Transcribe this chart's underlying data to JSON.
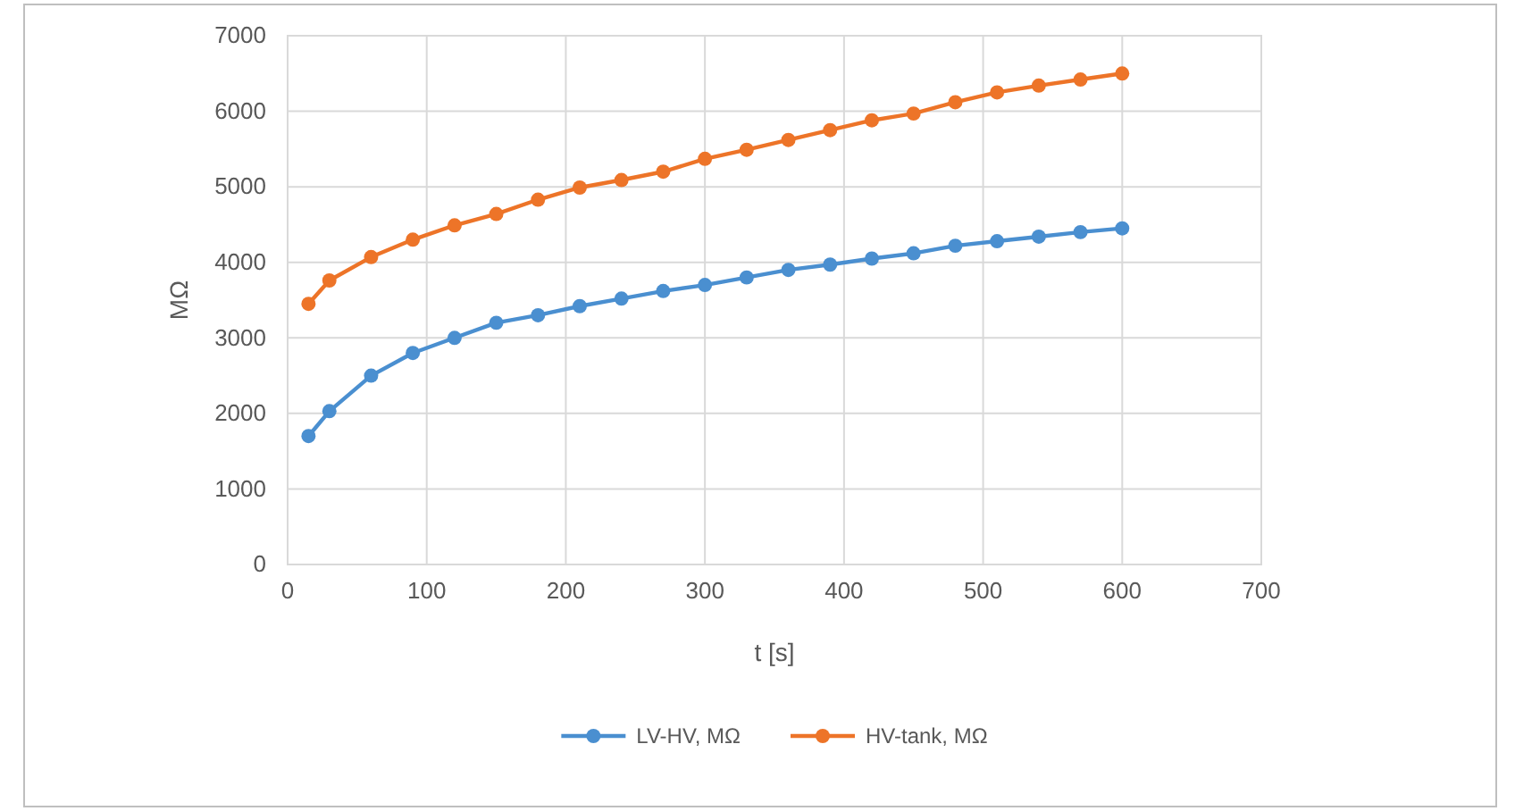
{
  "chart_data": {
    "type": "line",
    "xlabel": "t [s]",
    "ylabel": "MΩ",
    "x": [
      15,
      30,
      60,
      90,
      120,
      150,
      180,
      210,
      240,
      270,
      300,
      330,
      360,
      390,
      420,
      450,
      480,
      510,
      540,
      570,
      600
    ],
    "series": [
      {
        "name": "LV-HV, MΩ",
        "color": "#4a8fd0",
        "values": [
          1700,
          2030,
          2500,
          2800,
          3000,
          3200,
          3300,
          3420,
          3520,
          3620,
          3700,
          3800,
          3900,
          3970,
          4050,
          4120,
          4220,
          4280,
          4340,
          4400,
          4450
        ]
      },
      {
        "name": "HV-tank, MΩ",
        "color": "#ed7428",
        "values": [
          3450,
          3760,
          4070,
          4300,
          4490,
          4640,
          4830,
          4990,
          5090,
          5200,
          5370,
          5490,
          5620,
          5750,
          5880,
          5970,
          6120,
          6250,
          6340,
          6420,
          6500
        ]
      }
    ],
    "xlim": [
      0,
      700
    ],
    "xticks": [
      0,
      100,
      200,
      300,
      400,
      500,
      600,
      700
    ],
    "ylim": [
      0,
      7000
    ],
    "yticks": [
      0,
      1000,
      2000,
      3000,
      4000,
      5000,
      6000,
      7000
    ],
    "grid": true,
    "legend": "bottom",
    "marker": "circle",
    "line_style": "solid"
  }
}
